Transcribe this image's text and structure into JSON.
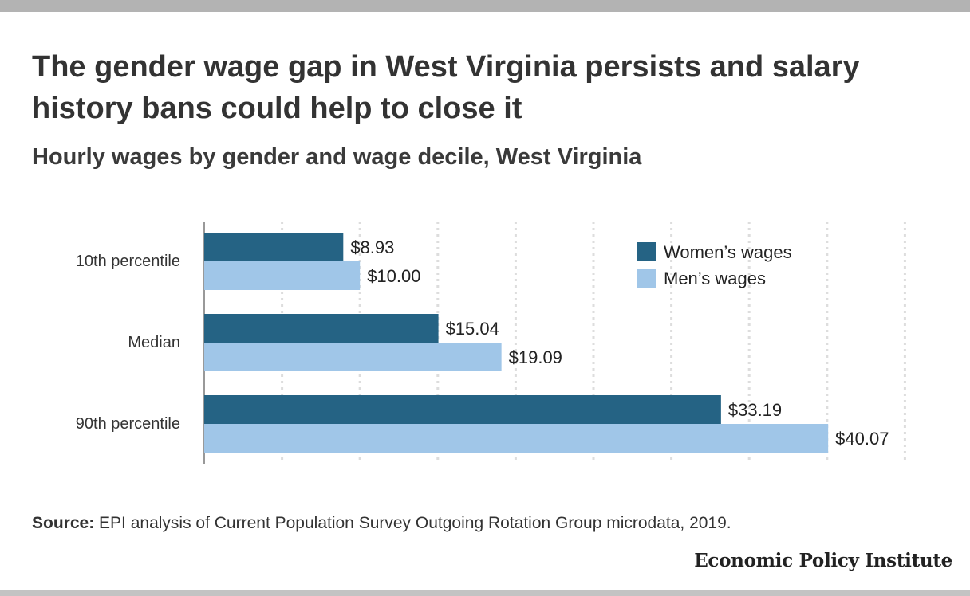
{
  "header": {
    "title": "The gender wage gap in West Virginia persists and salary history bans could help to close it",
    "subtitle": "Hourly wages by gender and wage decile, West Virginia"
  },
  "footer": {
    "source_label": "Source:",
    "source_text": " EPI analysis of Current Population Survey Outgoing Rotation Group microdata, 2019.",
    "logo_text": "Economic Policy Institute"
  },
  "colors": {
    "women": "#256384",
    "men": "#a0c6e8",
    "grid": "#dddddd",
    "axis": "#999999"
  },
  "chart_data": {
    "type": "bar",
    "orientation": "horizontal",
    "categories": [
      "10th percentile",
      "Median",
      "90th percentile"
    ],
    "series": [
      {
        "name": "Women’s wages",
        "values": [
          8.93,
          15.04,
          33.19
        ],
        "labels": [
          "$8.93",
          "$15.04",
          "$33.19"
        ]
      },
      {
        "name": "Men’s wages",
        "values": [
          10.0,
          19.09,
          40.07
        ],
        "labels": [
          "$10.00",
          "$19.09",
          "$40.07"
        ]
      }
    ],
    "xlim": [
      0,
      45
    ],
    "grid": true,
    "legend_position": "top-right"
  }
}
